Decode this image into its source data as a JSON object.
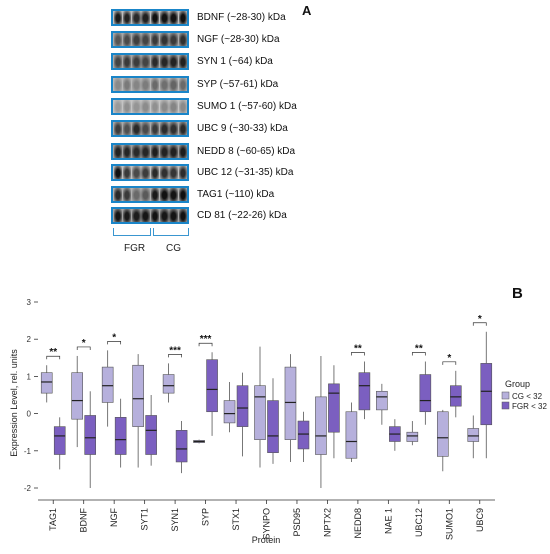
{
  "panel_a": {
    "letter": "A",
    "blots": [
      {
        "label": "BDNF (~28-30) kDa",
        "bands": [
          "#1a1a1a",
          "#222",
          "#2a2a2a",
          "#202020",
          "#101010",
          "#121212",
          "#141414",
          "#111111"
        ],
        "bg": "#bdbdbd"
      },
      {
        "label": "NGF (~28-30) kDa",
        "bands": [
          "#555",
          "#4a4a4a",
          "#3e3e3e",
          "#444",
          "#3a3a3a",
          "#333",
          "#3a3a3a",
          "#303030"
        ],
        "bg": "#a8a8a8"
      },
      {
        "label": "SYN 1 (~64) kDa",
        "bands": [
          "#444",
          "#3a3a3a",
          "#3c3c3c",
          "#444",
          "#2a2a2a",
          "#262626",
          "#222",
          "#202020"
        ],
        "bg": "#a6a6a6"
      },
      {
        "label": "SYP (~57-61) kDa",
        "bands": [
          "#8a8a8a",
          "#7a7a7a",
          "#858585",
          "#7c7c7c",
          "#6a6a6a",
          "#6f6f6f",
          "#646464",
          "#6a6a6a"
        ],
        "bg": "#b8b8b8"
      },
      {
        "label": "SUMO 1 (~57-60) kDa",
        "bands": [
          "#9a9a9a",
          "#8f8f8f",
          "#959595",
          "#8c8c8c",
          "#909090",
          "#8a8a8a",
          "#858585",
          "#8a8a8a"
        ],
        "bg": "#c4c4c4"
      },
      {
        "label": "UBC 9 (~30-33) kDa",
        "bands": [
          "#3c3c3c",
          "#505050",
          "#2a2a2a",
          "#4a4a4a",
          "#3a3a3a",
          "#2c2c2c",
          "#303030",
          "#2a2a2a"
        ],
        "bg": "#a9a9a9"
      },
      {
        "label": "NEDD 8 (~60-65) kDa",
        "bands": [
          "#222",
          "#262626",
          "#2a2a2a",
          "#262626",
          "#1e1e1e",
          "#222",
          "#202020",
          "#1c1c1c"
        ],
        "bg": "#9e9e9e"
      },
      {
        "label": "UBC 12 (~31-35) kDa",
        "bands": [
          "#101010",
          "#3a3a3a",
          "#4a4a4a",
          "#3c3c3c",
          "#2a2a2a",
          "#303030",
          "#353535",
          "#2c2c2c"
        ],
        "bg": "#c0c0c0"
      },
      {
        "label": "TAG1 (~110) kDa",
        "bands": [
          "#2a2a2a",
          "#3a3a3a",
          "#6a6a6a",
          "#5a5a5a",
          "#1a1a1a",
          "#111",
          "#141414",
          "#101010"
        ],
        "bg": "#b0b0b0"
      },
      {
        "label": "CD 81 (~22-26) kDa",
        "bands": [
          "#151515",
          "#1a1a1a",
          "#1c1c1c",
          "#161616",
          "#121212",
          "#161616",
          "#141414",
          "#121212"
        ],
        "bg": "#a2a2a2"
      }
    ],
    "groups": [
      {
        "label": "FGR"
      },
      {
        "label": "CG"
      }
    ]
  },
  "panel_b": {
    "letter": "B",
    "legend_title": "Group",
    "colors": {
      "CG": "#b6b0dc",
      "FGR": "#7b5fc0",
      "stroke": "#555555",
      "axis": "#333333"
    },
    "chart_data": {
      "type": "box",
      "xlabel": "Protein",
      "ylabel": "Expression Level, rel. units",
      "ylim": [
        -2,
        3.2
      ],
      "yticks": [
        -2,
        -1,
        0,
        1,
        2,
        3
      ],
      "grid": false,
      "legend_placement": "right",
      "categories": [
        "TAG1",
        "BDNF",
        "NGF",
        "SYT1",
        "SYN1",
        "SYP",
        "STX1",
        "SYNPO",
        "PSD95",
        "NPTX2",
        "NEDD8",
        "NAE 1",
        "UBC12",
        "SUMO1",
        "UBC9"
      ],
      "significance": [
        "**",
        "*",
        "*",
        "",
        "***",
        "***",
        "",
        "",
        "",
        "",
        "**",
        "",
        "**",
        "*",
        "*"
      ],
      "series": [
        {
          "name": "CG < 32",
          "color": "#b6b0dc",
          "boxes": [
            {
              "min": 0.3,
              "q1": 0.55,
              "median": 0.85,
              "q3": 1.1,
              "max": 1.3
            },
            {
              "min": -0.9,
              "q1": -0.15,
              "median": 0.35,
              "q3": 1.1,
              "max": 1.55
            },
            {
              "min": -0.35,
              "q1": 0.3,
              "median": 0.75,
              "q3": 1.25,
              "max": 1.7
            },
            {
              "min": -1.45,
              "q1": -0.35,
              "median": 0.4,
              "q3": 1.3,
              "max": 1.6
            },
            {
              "min": 0.3,
              "q1": 0.55,
              "median": 0.75,
              "q3": 1.05,
              "max": 1.35
            },
            {
              "min": -0.8,
              "q1": -0.78,
              "median": -0.75,
              "q3": -0.72,
              "max": -0.7
            },
            {
              "min": -0.5,
              "q1": -0.25,
              "median": 0.0,
              "q3": 0.35,
              "max": 0.85
            },
            {
              "min": -1.45,
              "q1": -0.7,
              "median": 0.45,
              "q3": 0.75,
              "max": 1.8
            },
            {
              "min": -1.3,
              "q1": -0.7,
              "median": 0.3,
              "q3": 1.25,
              "max": 1.6
            },
            {
              "min": -2.0,
              "q1": -1.1,
              "median": -0.6,
              "q3": 0.45,
              "max": 1.55
            },
            {
              "min": -1.3,
              "q1": -1.2,
              "median": -0.75,
              "q3": 0.05,
              "max": 0.3
            },
            {
              "min": -0.3,
              "q1": 0.1,
              "median": 0.45,
              "q3": 0.6,
              "max": 0.8
            },
            {
              "min": -0.85,
              "q1": -0.75,
              "median": -0.6,
              "q3": -0.5,
              "max": -0.2
            },
            {
              "min": -1.55,
              "q1": -1.15,
              "median": -0.65,
              "q3": 0.05,
              "max": 0.1
            },
            {
              "min": -1.2,
              "q1": -0.75,
              "median": -0.6,
              "q3": -0.4,
              "max": -0.05
            }
          ]
        },
        {
          "name": "FGR < 32",
          "color": "#7b5fc0",
          "boxes": [
            {
              "min": -1.5,
              "q1": -1.1,
              "median": -0.6,
              "q3": -0.35,
              "max": -0.1
            },
            {
              "min": -2.0,
              "q1": -1.1,
              "median": -0.65,
              "q3": -0.05,
              "max": 0.6
            },
            {
              "min": -1.45,
              "q1": -1.1,
              "median": -0.7,
              "q3": -0.1,
              "max": 0.4
            },
            {
              "min": -1.4,
              "q1": -1.1,
              "median": -0.45,
              "q3": -0.05,
              "max": 0.5
            },
            {
              "min": -1.6,
              "q1": -1.3,
              "median": -0.95,
              "q3": -0.45,
              "max": -0.2
            },
            {
              "min": -0.6,
              "q1": 0.05,
              "median": 0.65,
              "q3": 1.45,
              "max": 1.65
            },
            {
              "min": -1.15,
              "q1": -0.35,
              "median": 0.15,
              "q3": 0.75,
              "max": 1.1
            },
            {
              "min": -1.35,
              "q1": -1.05,
              "median": -0.6,
              "q3": 0.35,
              "max": 0.95
            },
            {
              "min": -1.3,
              "q1": -0.95,
              "median": -0.55,
              "q3": -0.2,
              "max": 0.05
            },
            {
              "min": -1.2,
              "q1": -0.5,
              "median": 0.55,
              "q3": 0.8,
              "max": 1.3
            },
            {
              "min": -0.15,
              "q1": 0.1,
              "median": 0.75,
              "q3": 1.1,
              "max": 1.4
            },
            {
              "min": -1.0,
              "q1": -0.75,
              "median": -0.55,
              "q3": -0.35,
              "max": -0.15
            },
            {
              "min": -0.3,
              "q1": 0.05,
              "median": 0.35,
              "q3": 1.05,
              "max": 1.4
            },
            {
              "min": -0.1,
              "q1": 0.2,
              "median": 0.45,
              "q3": 0.75,
              "max": 1.15
            },
            {
              "min": -1.2,
              "q1": -0.3,
              "median": 0.6,
              "q3": 1.35,
              "max": 2.2
            }
          ]
        }
      ]
    }
  }
}
